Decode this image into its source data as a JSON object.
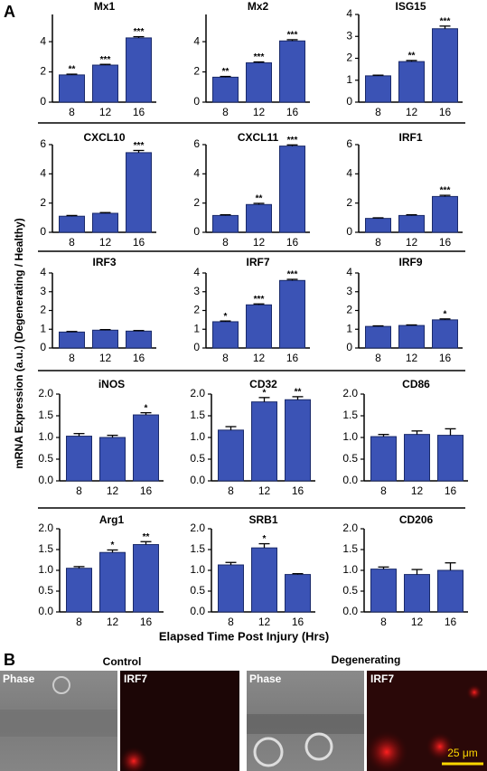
{
  "panel_labels": [
    "A",
    "B"
  ],
  "y_label": "mRNA Expression (a.u.) (Degenerating / Healthy)",
  "x_label": "Elapsed Time Post Injury (Hrs)",
  "chart_data": [
    {
      "type": "bar",
      "title": "Mx1",
      "categories": [
        "8",
        "12",
        "16"
      ],
      "values": [
        1.8,
        2.45,
        4.25
      ],
      "errors": [
        0.05,
        0.05,
        0.08
      ],
      "annotations": [
        "**",
        "***",
        "***"
      ],
      "color": "#3b53b5",
      "ylim": [
        0,
        5.8
      ],
      "yticks": [
        0,
        2,
        4
      ]
    },
    {
      "type": "bar",
      "title": "Mx2",
      "categories": [
        "8",
        "12",
        "16"
      ],
      "values": [
        1.65,
        2.6,
        4.05
      ],
      "errors": [
        0.05,
        0.06,
        0.08
      ],
      "annotations": [
        "**",
        "***",
        "***"
      ],
      "color": "#3b53b5",
      "ylim": [
        0,
        5.8
      ],
      "yticks": [
        0,
        2,
        4
      ]
    },
    {
      "type": "bar",
      "title": "ISG15",
      "categories": [
        "8",
        "12",
        "16"
      ],
      "values": [
        1.2,
        1.85,
        3.35
      ],
      "errors": [
        0.03,
        0.05,
        0.12
      ],
      "annotations": [
        null,
        "**",
        "***"
      ],
      "color": "#3b53b5",
      "ylim": [
        0,
        4
      ],
      "yticks": [
        0,
        1,
        2,
        3,
        4
      ]
    },
    {
      "type": "bar",
      "title": "CXCL10",
      "categories": [
        "8",
        "12",
        "16"
      ],
      "values": [
        1.1,
        1.3,
        5.45
      ],
      "errors": [
        0.05,
        0.05,
        0.15
      ],
      "annotations": [
        null,
        null,
        "***"
      ],
      "color": "#3b53b5",
      "ylim": [
        0,
        6
      ],
      "yticks": [
        0,
        2,
        4,
        6
      ]
    },
    {
      "type": "bar",
      "title": "CXCL11",
      "categories": [
        "8",
        "12",
        "16"
      ],
      "values": [
        1.15,
        1.9,
        5.9
      ],
      "errors": [
        0.05,
        0.08,
        0.08
      ],
      "annotations": [
        null,
        "**",
        "***"
      ],
      "color": "#3b53b5",
      "ylim": [
        0,
        6
      ],
      "yticks": [
        0,
        2,
        4,
        6
      ]
    },
    {
      "type": "bar",
      "title": "IRF1",
      "categories": [
        "8",
        "12",
        "16"
      ],
      "values": [
        0.95,
        1.15,
        2.45
      ],
      "errors": [
        0.04,
        0.05,
        0.08
      ],
      "annotations": [
        null,
        null,
        "***"
      ],
      "color": "#3b53b5",
      "ylim": [
        0,
        6
      ],
      "yticks": [
        0,
        2,
        4,
        6
      ]
    },
    {
      "type": "bar",
      "title": "IRF3",
      "categories": [
        "8",
        "12",
        "16"
      ],
      "values": [
        0.85,
        0.95,
        0.9
      ],
      "errors": [
        0.03,
        0.03,
        0.03
      ],
      "annotations": [
        null,
        null,
        null
      ],
      "color": "#3b53b5",
      "ylim": [
        0,
        4
      ],
      "yticks": [
        0,
        1,
        2,
        3,
        4
      ]
    },
    {
      "type": "bar",
      "title": "IRF7",
      "categories": [
        "8",
        "12",
        "16"
      ],
      "values": [
        1.4,
        2.3,
        3.6
      ],
      "errors": [
        0.04,
        0.05,
        0.06
      ],
      "annotations": [
        "*",
        "***",
        "***"
      ],
      "color": "#3b53b5",
      "ylim": [
        0,
        4
      ],
      "yticks": [
        0,
        1,
        2,
        3,
        4
      ]
    },
    {
      "type": "bar",
      "title": "IRF9",
      "categories": [
        "8",
        "12",
        "16"
      ],
      "values": [
        1.15,
        1.2,
        1.5
      ],
      "errors": [
        0.03,
        0.03,
        0.05
      ],
      "annotations": [
        null,
        null,
        "*"
      ],
      "color": "#3b53b5",
      "ylim": [
        0,
        4
      ],
      "yticks": [
        0,
        1,
        2,
        3,
        4
      ]
    },
    {
      "type": "bar",
      "title": "iNOS",
      "categories": [
        "8",
        "12",
        "16"
      ],
      "values": [
        1.03,
        1.0,
        1.52
      ],
      "errors": [
        0.06,
        0.05,
        0.05
      ],
      "annotations": [
        null,
        null,
        "*"
      ],
      "color": "#3b53b5",
      "ylim": [
        0,
        2
      ],
      "yticks": [
        {
          "value": 0,
          "label": "0.0"
        },
        0.5,
        {
          "value": 1,
          "label": "1.0"
        },
        1.5,
        {
          "value": 2,
          "label": "2.0"
        }
      ]
    },
    {
      "type": "bar",
      "title": "CD32",
      "categories": [
        "8",
        "12",
        "16"
      ],
      "values": [
        1.17,
        1.82,
        1.87
      ],
      "errors": [
        0.08,
        0.1,
        0.07
      ],
      "annotations": [
        null,
        "*",
        "**"
      ],
      "color": "#3b53b5",
      "ylim": [
        0,
        2
      ],
      "yticks": [
        {
          "value": 0,
          "label": "0.0"
        },
        0.5,
        {
          "value": 1,
          "label": "1.0"
        },
        1.5,
        {
          "value": 2,
          "label": "2.0"
        }
      ]
    },
    {
      "type": "bar",
      "title": "CD86",
      "categories": [
        "8",
        "12",
        "16"
      ],
      "values": [
        1.02,
        1.07,
        1.05
      ],
      "errors": [
        0.05,
        0.08,
        0.15
      ],
      "annotations": [
        null,
        null,
        null
      ],
      "color": "#3b53b5",
      "ylim": [
        0,
        2
      ],
      "yticks": [
        {
          "value": 0,
          "label": "0.0"
        },
        0.5,
        {
          "value": 1,
          "label": "1.0"
        },
        1.5,
        {
          "value": 2,
          "label": "2.0"
        }
      ]
    },
    {
      "type": "bar",
      "title": "Arg1",
      "categories": [
        "8",
        "12",
        "16"
      ],
      "values": [
        1.05,
        1.43,
        1.62
      ],
      "errors": [
        0.04,
        0.06,
        0.07
      ],
      "annotations": [
        null,
        "*",
        "**"
      ],
      "color": "#3b53b5",
      "ylim": [
        0,
        2
      ],
      "yticks": [
        {
          "value": 0,
          "label": "0.0"
        },
        0.5,
        {
          "value": 1,
          "label": "1.0"
        },
        1.5,
        {
          "value": 2,
          "label": "2.0"
        }
      ]
    },
    {
      "type": "bar",
      "title": "SRB1",
      "categories": [
        "8",
        "12",
        "16"
      ],
      "values": [
        1.13,
        1.54,
        0.9
      ],
      "errors": [
        0.06,
        0.1,
        0.02
      ],
      "annotations": [
        null,
        "*",
        null
      ],
      "color": "#3b53b5",
      "ylim": [
        0,
        2
      ],
      "yticks": [
        {
          "value": 0,
          "label": "0.0"
        },
        0.5,
        {
          "value": 1,
          "label": "1.0"
        },
        1.5,
        {
          "value": 2,
          "label": "2.0"
        }
      ]
    },
    {
      "type": "bar",
      "title": "CD206",
      "categories": [
        "8",
        "12",
        "16"
      ],
      "values": [
        1.03,
        0.9,
        1.0
      ],
      "errors": [
        0.05,
        0.12,
        0.18
      ],
      "annotations": [
        null,
        null,
        null
      ],
      "color": "#3b53b5",
      "ylim": [
        0,
        2
      ],
      "yticks": [
        {
          "value": 0,
          "label": "0.0"
        },
        0.5,
        {
          "value": 1,
          "label": "1.0"
        },
        1.5,
        {
          "value": 2,
          "label": "2.0"
        }
      ]
    }
  ],
  "panel_b": {
    "groups": [
      {
        "title": "Control",
        "images": [
          "Phase",
          "IRF7"
        ]
      },
      {
        "title": "Degenerating",
        "images": [
          "Phase",
          "IRF7"
        ]
      }
    ],
    "scale_bar": "25 μm"
  }
}
